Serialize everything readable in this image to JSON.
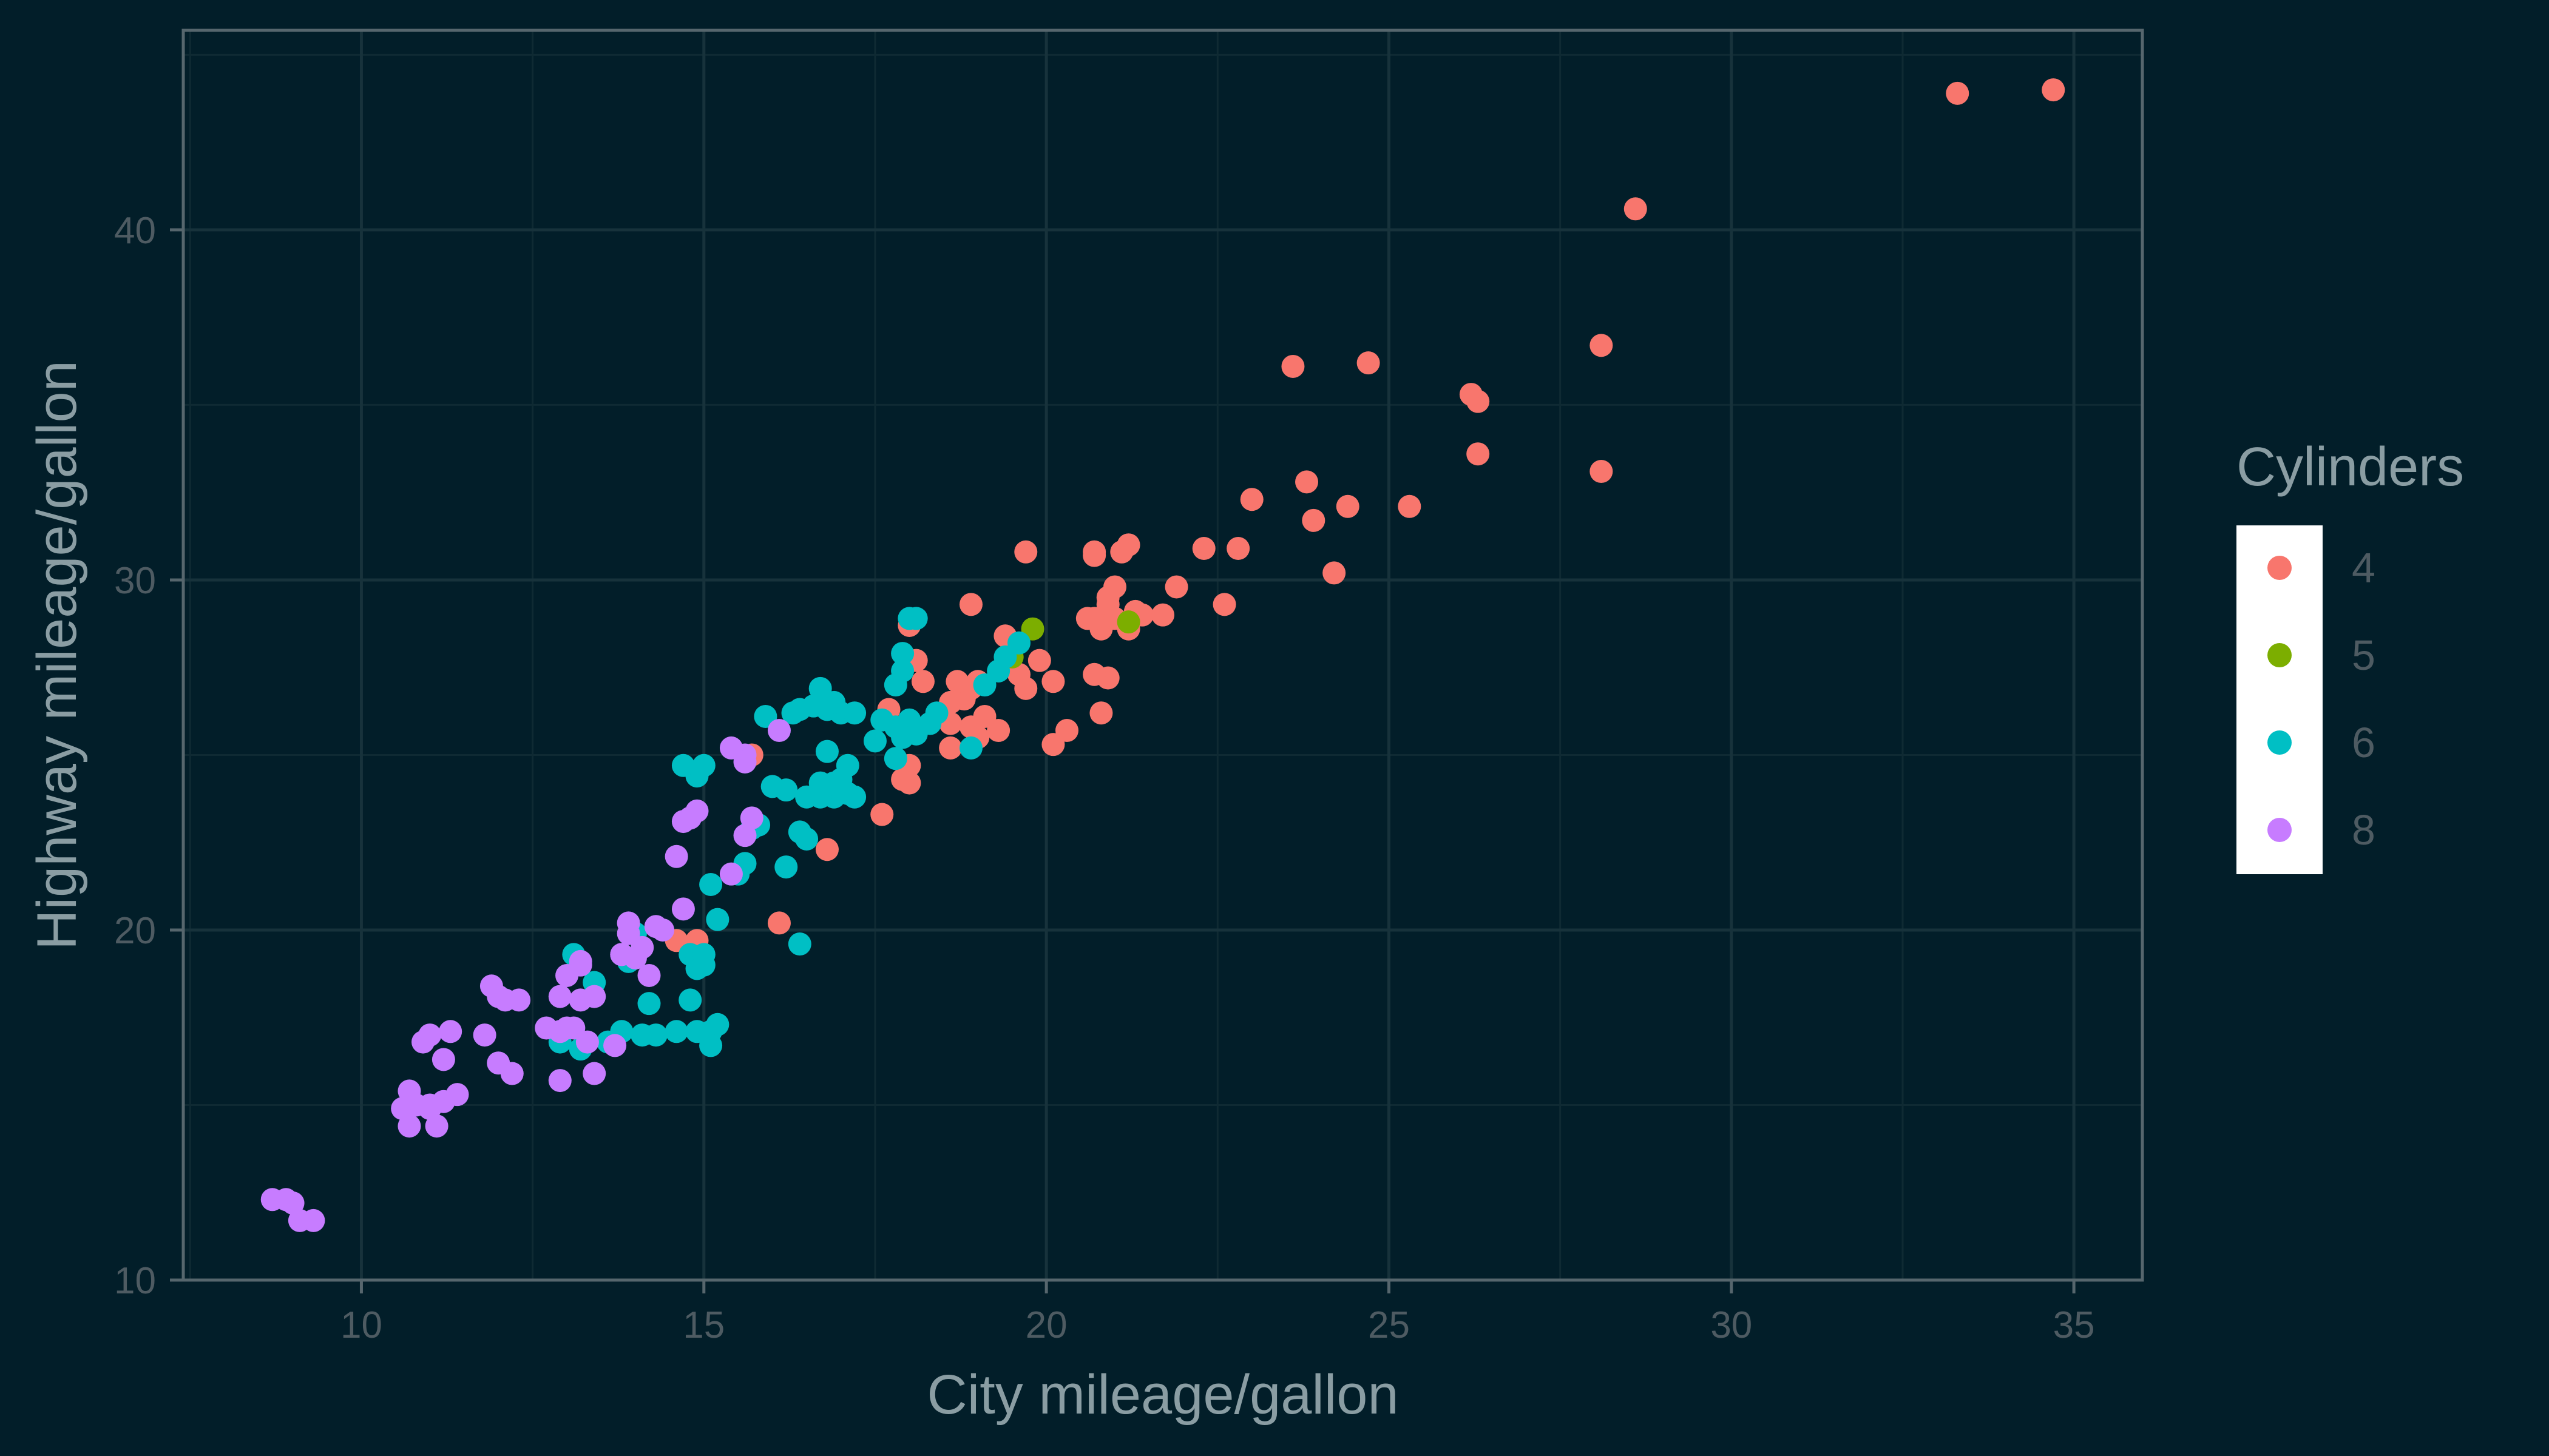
{
  "colors": {
    "background": "#021e29",
    "panel_border": "#56666d",
    "grid_major": "#17323b",
    "grid_minor": "#0f2a33",
    "legend_key_background": "#ffffff"
  },
  "chart_data": {
    "type": "scatter",
    "title": "",
    "xlabel": "City mileage/gallon",
    "ylabel": "Highway mileage/gallon",
    "xlim": [
      7.4,
      36.0
    ],
    "ylim": [
      10.0,
      45.7
    ],
    "x_ticks": [
      10,
      15,
      20,
      25,
      30,
      35
    ],
    "y_ticks": [
      10,
      20,
      30,
      40
    ],
    "grid": true,
    "legend": {
      "title": "Cylinders",
      "position": "right"
    },
    "series": [
      {
        "name": "4",
        "color": "#f8766d",
        "x": [
          34.7,
          33.3,
          28.6,
          28.1,
          28.1,
          26.3,
          26.3,
          26.2,
          24.7,
          23.6,
          25.3,
          24.4,
          23.9,
          23.8,
          24.2,
          23.0,
          22.8,
          22.3,
          22.6,
          21.9,
          21.2,
          21.1,
          20.7,
          21.0,
          20.9,
          21.4,
          21.7,
          20.6,
          21.2,
          20.8,
          20.7,
          20.9,
          21.3,
          21.0,
          20.7,
          20.9,
          20.7,
          19.7,
          18.9,
          19.4,
          19.5,
          19.9,
          20.1,
          19.6,
          19.7,
          19.0,
          18.9,
          18.8,
          18.7,
          18.6,
          19.1,
          19.3,
          18.9,
          18.6,
          19.0,
          18.6,
          18.2,
          18.1,
          17.9,
          18.0,
          17.7,
          17.9,
          18.0,
          17.6,
          20.3,
          20.1,
          20.8,
          16.8,
          16.1,
          14.9,
          14.6,
          15.7,
          18.0
        ],
        "y": [
          44.0,
          43.9,
          40.6,
          36.7,
          33.1,
          33.6,
          35.1,
          35.3,
          36.2,
          36.1,
          32.1,
          32.1,
          31.7,
          32.8,
          30.2,
          32.3,
          30.9,
          30.9,
          29.3,
          29.8,
          31.0,
          30.8,
          30.8,
          29.8,
          29.5,
          29.0,
          29.0,
          28.9,
          28.6,
          28.6,
          28.9,
          29.3,
          29.1,
          28.9,
          30.7,
          27.2,
          27.3,
          30.8,
          29.3,
          28.4,
          28.1,
          27.7,
          27.1,
          27.3,
          26.9,
          27.1,
          26.9,
          26.6,
          27.1,
          26.5,
          26.1,
          25.7,
          25.8,
          25.9,
          25.5,
          25.2,
          27.1,
          27.7,
          25.7,
          24.7,
          26.3,
          24.3,
          24.2,
          23.3,
          25.7,
          25.3,
          26.2,
          22.3,
          20.2,
          19.7,
          19.7,
          25.0,
          28.7
        ]
      },
      {
        "name": "5",
        "color": "#7cae00",
        "x": [
          19.8,
          19.5,
          21.2
        ],
        "y": [
          28.6,
          27.8,
          28.8
        ]
      },
      {
        "name": "6",
        "color": "#00bfc4",
        "x": [
          18.1,
          17.9,
          19.4,
          19.3,
          19.6,
          19.1,
          18.4,
          18.0,
          17.8,
          17.9,
          17.6,
          17.8,
          17.9,
          18.3,
          18.1,
          17.8,
          17.5,
          17.0,
          16.8,
          16.7,
          16.9,
          17.2,
          16.6,
          16.8,
          17.1,
          17.0,
          16.5,
          16.7,
          16.2,
          16.0,
          15.9,
          16.3,
          16.4,
          17.2,
          16.9,
          17.0,
          16.8,
          17.1,
          16.9,
          16.7,
          16.5,
          15.7,
          15.8,
          15.5,
          16.2,
          16.4,
          15.6,
          14.9,
          14.7,
          15.0,
          15.1,
          15.2,
          14.8,
          14.9,
          14.9,
          15.0,
          14.8,
          15.1,
          15.2,
          15.1,
          14.9,
          14.6,
          14.3,
          14.1,
          14.2,
          14.0,
          13.9,
          13.8,
          13.6,
          13.1,
          13.4,
          12.9,
          13.2,
          15.0,
          16.4,
          18.9,
          18.0
        ],
        "y": [
          28.9,
          27.9,
          27.8,
          27.4,
          28.2,
          27.0,
          26.2,
          26.0,
          25.8,
          25.5,
          26.0,
          27.0,
          27.4,
          25.9,
          25.6,
          24.9,
          25.4,
          26.2,
          26.3,
          26.9,
          26.5,
          26.2,
          26.4,
          25.1,
          24.7,
          24.1,
          23.8,
          24.2,
          24.0,
          24.1,
          26.1,
          26.2,
          26.3,
          23.8,
          23.8,
          24.3,
          23.9,
          23.9,
          24.2,
          23.8,
          22.6,
          22.9,
          23.0,
          21.6,
          21.8,
          22.8,
          21.9,
          24.4,
          24.7,
          24.7,
          21.3,
          20.3,
          19.3,
          18.9,
          19.2,
          19.0,
          18.0,
          17.1,
          17.3,
          16.7,
          17.1,
          17.1,
          17.0,
          17.0,
          17.9,
          19.9,
          19.1,
          17.1,
          16.8,
          19.3,
          18.5,
          16.8,
          16.6,
          19.3,
          19.6,
          25.2,
          28.9
        ]
      },
      {
        "name": "8",
        "color": "#c77cff",
        "x": [
          8.7,
          8.9,
          9.1,
          9.0,
          9.3,
          10.7,
          10.8,
          11.0,
          11.1,
          11.4,
          11.2,
          11.3,
          11.0,
          10.9,
          10.7,
          10.6,
          11.0,
          11.2,
          11.9,
          12.0,
          12.1,
          12.3,
          12.2,
          12.0,
          11.8,
          12.9,
          12.7,
          12.9,
          13.1,
          13.2,
          13.0,
          13.2,
          13.4,
          13.0,
          13.3,
          13.7,
          12.9,
          13.4,
          13.8,
          13.9,
          14.1,
          14.2,
          14.3,
          13.9,
          14.0,
          14.4,
          14.6,
          14.8,
          14.7,
          15.4,
          15.6,
          15.7,
          15.4,
          14.9,
          14.7,
          15.6,
          16.1,
          15.6,
          13.2,
          13.8
        ],
        "y": [
          12.3,
          12.3,
          11.7,
          12.2,
          11.7,
          14.4,
          15.0,
          14.9,
          14.4,
          15.3,
          16.3,
          17.1,
          17.0,
          16.8,
          15.4,
          14.9,
          15.0,
          15.1,
          18.4,
          18.1,
          18.0,
          18.0,
          15.9,
          16.2,
          17.0,
          18.1,
          17.2,
          17.1,
          17.2,
          18.0,
          18.7,
          19.1,
          18.1,
          17.2,
          16.8,
          16.7,
          15.7,
          15.9,
          19.3,
          19.9,
          19.5,
          18.7,
          20.1,
          20.2,
          19.2,
          20.0,
          22.1,
          23.2,
          20.6,
          21.6,
          25.0,
          23.2,
          25.2,
          23.4,
          23.1,
          24.8,
          25.7,
          22.7,
          19.0,
          19.3
        ]
      }
    ]
  }
}
